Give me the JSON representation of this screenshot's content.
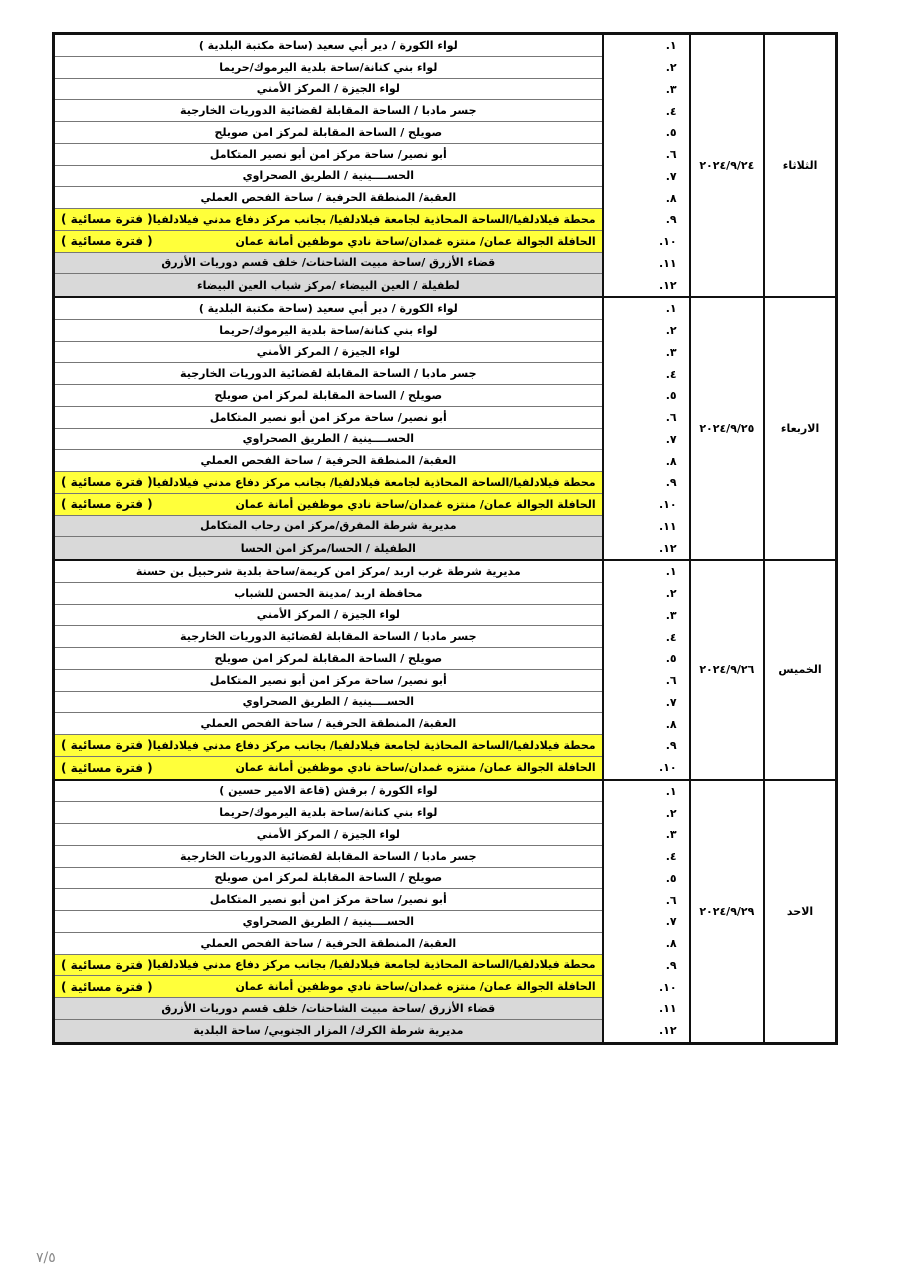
{
  "colors": {
    "highlight_evening": "#ffff3a",
    "highlight_gray": "#d9d9d9"
  },
  "evening_tag": "( فترة مسائية )",
  "blocks": [
    {
      "day": "الثلاثاء",
      "date": "٢٠٢٤/٩/٢٤",
      "rows": [
        {
          "num": "١.",
          "text": "لواء الكورة / دير أبي سعيد (ساحة مكتبة البلدية )",
          "style": ""
        },
        {
          "num": "٢.",
          "text": "لواء بني كنانة/ساحة بلدية اليرموك/حريما",
          "style": ""
        },
        {
          "num": "٣.",
          "text": "لواء الجيزة / المركز الأمني",
          "style": ""
        },
        {
          "num": "٤.",
          "text": "جسر مادبا / الساحة المقابلة لقضائية الدوريات الخارجية",
          "style": ""
        },
        {
          "num": "٥.",
          "text": "صويلح / الساحة المقابلة لمركز امن صويلح",
          "style": ""
        },
        {
          "num": "٦.",
          "text": "أبو نصير/ ساحة مركز امن أبو نصير المتكامل",
          "style": ""
        },
        {
          "num": "٧.",
          "text": "الحســــينية / الطريق الصحراوي",
          "style": ""
        },
        {
          "num": "٨.",
          "text": "العقبة/ المنطقة الحرفية / ساحة الفحص العملي",
          "style": ""
        },
        {
          "num": "٩.",
          "text": "محطة فيلادلفيا/الساحة المحاذية لجامعة فيلادلفيا/ بجانب مركز دفاع مدني فيلادلفيا",
          "style": "yellow"
        },
        {
          "num": "١٠.",
          "text": "الحافلة الجوالة عمان/ منتزه غمدان/ساحة نادي موظفين أمانة عمان",
          "style": "yellow"
        },
        {
          "num": "١١.",
          "text": "قضاء الأزرق /ساحة مبيت الشاحنات/ خلف قسم دوريات الأزرق",
          "style": "gray"
        },
        {
          "num": "١٢.",
          "text": "لطفيلة /  العين البيضاء /مركز شباب العين البيضاء",
          "style": "gray"
        }
      ]
    },
    {
      "day": "الاربعاء",
      "date": "٢٠٢٤/٩/٢٥",
      "rows": [
        {
          "num": "١.",
          "text": "لواء الكورة / دير أبي سعيد (ساحة مكتبة البلدية )",
          "style": ""
        },
        {
          "num": "٢.",
          "text": "لواء بني كنانة/ساحة بلدية اليرموك/حريما",
          "style": ""
        },
        {
          "num": "٣.",
          "text": "لواء الجيزة / المركز الأمني",
          "style": ""
        },
        {
          "num": "٤.",
          "text": "جسر مادبا / الساحة المقابلة لقضائية الدوريات الخارجية",
          "style": ""
        },
        {
          "num": "٥.",
          "text": "صويلح / الساحة المقابلة لمركز امن صويلح",
          "style": ""
        },
        {
          "num": "٦.",
          "text": "أبو نصير/ ساحة مركز امن أبو نصير المتكامل",
          "style": ""
        },
        {
          "num": "٧.",
          "text": "الحســــينية / الطريق الصحراوي",
          "style": ""
        },
        {
          "num": "٨.",
          "text": "العقبة/ المنطقة الحرفية / ساحة الفحص العملي",
          "style": ""
        },
        {
          "num": "٩.",
          "text": "محطة فيلادلفيا/الساحة المحاذية لجامعة فيلادلفيا/ بجانب مركز دفاع مدني فيلادلفيا",
          "style": "yellow"
        },
        {
          "num": "١٠.",
          "text": "الحافلة الجوالة عمان/ منتزه غمدان/ساحة نادي موظفين أمانة عمان",
          "style": "yellow"
        },
        {
          "num": "١١.",
          "text": "مديرية شرطة المفرق/مركز امن رحاب المتكامل",
          "style": "gray"
        },
        {
          "num": "١٢.",
          "text": "الطفيلة / الحسا/مركز امن الحسا",
          "style": "gray"
        }
      ]
    },
    {
      "day": "الخميس",
      "date": "٢٠٢٤/٩/٢٦",
      "rows": [
        {
          "num": "١.",
          "text": "مديرية شرطة غرب اربد /مركز امن كريمة/ساحة بلدية شرحبيل بن حسنة",
          "style": ""
        },
        {
          "num": "٢.",
          "text": "محافظة اربد /مدينة الحسن للشباب",
          "style": ""
        },
        {
          "num": "٣.",
          "text": "لواء الجيزة / المركز الأمني",
          "style": ""
        },
        {
          "num": "٤.",
          "text": "جسر مادبا / الساحة المقابلة لقضائية الدوريات الخارجية",
          "style": ""
        },
        {
          "num": "٥.",
          "text": "صويلح / الساحة المقابلة لمركز امن صويلح",
          "style": ""
        },
        {
          "num": "٦.",
          "text": "أبو نصير/ ساحة مركز امن أبو نصير المتكامل",
          "style": ""
        },
        {
          "num": "٧.",
          "text": "الحســــينية / الطريق الصحراوي",
          "style": ""
        },
        {
          "num": "٨.",
          "text": "العقبة/ المنطقة الحرفية / ساحة الفحص العملي",
          "style": ""
        },
        {
          "num": "٩.",
          "text": "محطة فيلادلفيا/الساحة المحاذية لجامعة فيلادلفيا/ بجانب مركز دفاع مدني فيلادلفيا",
          "style": "yellow"
        },
        {
          "num": "١٠.",
          "text": "الحافلة الجوالة عمان/ منتزه غمدان/ساحة نادي موظفين أمانة عمان",
          "style": "yellow"
        }
      ]
    },
    {
      "day": "الاحد",
      "date": "٢٠٢٤/٩/٢٩",
      "rows": [
        {
          "num": "١.",
          "text": "لواء الكورة / برقش (قاعة الامير حسين )",
          "style": ""
        },
        {
          "num": "٢.",
          "text": "لواء بني كنانة/ساحة بلدية اليرموك/حريما",
          "style": ""
        },
        {
          "num": "٣.",
          "text": "لواء الجيزة / المركز الأمني",
          "style": ""
        },
        {
          "num": "٤.",
          "text": "جسر مادبا / الساحة المقابلة لقضائية الدوريات الخارجية",
          "style": ""
        },
        {
          "num": "٥.",
          "text": "صويلح / الساحة المقابلة لمركز امن صويلح",
          "style": ""
        },
        {
          "num": "٦.",
          "text": "أبو نصير/ ساحة مركز امن أبو نصير المتكامل",
          "style": ""
        },
        {
          "num": "٧.",
          "text": "الحســــينية / الطريق الصحراوي",
          "style": ""
        },
        {
          "num": "٨.",
          "text": "العقبة/ المنطقة الحرفية / ساحة الفحص العملي",
          "style": ""
        },
        {
          "num": "٩.",
          "text": "محطة فيلادلفيا/الساحة المحاذية لجامعة فيلادلفيا/ بجانب مركز دفاع مدني فيلادلفيا",
          "style": "yellow"
        },
        {
          "num": "١٠.",
          "text": "الحافلة الجوالة عمان/ منتزه غمدان/ساحة نادي موظفين أمانة عمان",
          "style": "yellow"
        },
        {
          "num": "١١.",
          "text": "قضاء الأزرق /ساحة مبيت الشاحنات/ خلف قسم دوريات الأزرق",
          "style": "gray"
        },
        {
          "num": "١٢.",
          "text": "مديرية شرطة الكرك/ المزار الجنوبي/ ساحة البلدية",
          "style": "gray"
        }
      ]
    }
  ],
  "footer": {
    "page": "٧/٥"
  }
}
